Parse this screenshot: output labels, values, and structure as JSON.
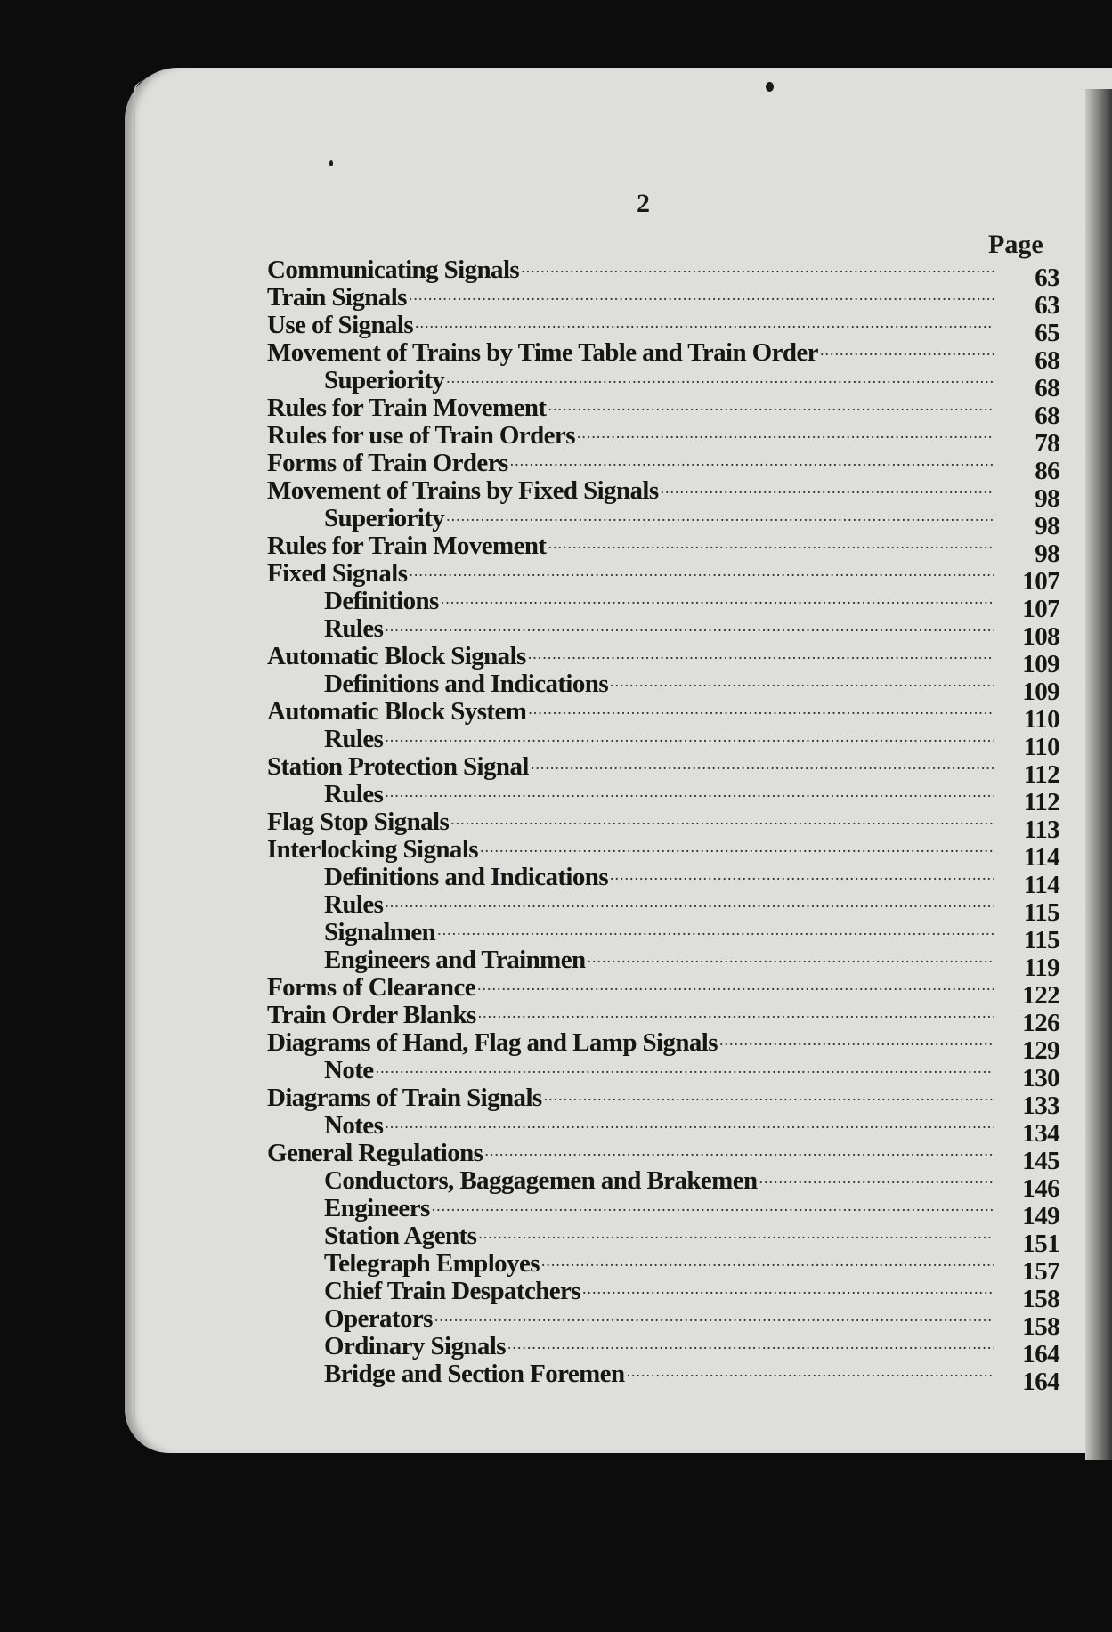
{
  "page_number": "2",
  "page_column_header": "Page",
  "entries": [
    {
      "label": "Communicating Signals",
      "page": "63",
      "indent": false
    },
    {
      "label": "Train Signals",
      "page": "63",
      "indent": false
    },
    {
      "label": "Use of Signals",
      "page": "65",
      "indent": false
    },
    {
      "label": "Movement of Trains by Time Table and Train Order",
      "page": "68",
      "indent": false
    },
    {
      "label": "Superiority",
      "page": "68",
      "indent": true
    },
    {
      "label": "Rules for Train Movement",
      "page": "68",
      "indent": false
    },
    {
      "label": "Rules for use of Train Orders",
      "page": "78",
      "indent": false
    },
    {
      "label": "Forms of Train Orders",
      "page": "86",
      "indent": false
    },
    {
      "label": "Movement of Trains by Fixed Signals",
      "page": "98",
      "indent": false
    },
    {
      "label": "Superiority",
      "page": "98",
      "indent": true
    },
    {
      "label": "Rules for Train Movement",
      "page": "98",
      "indent": false
    },
    {
      "label": "Fixed Signals",
      "page": "107",
      "indent": false
    },
    {
      "label": "Definitions",
      "page": "107",
      "indent": true
    },
    {
      "label": "Rules",
      "page": "108",
      "indent": true
    },
    {
      "label": "Automatic Block Signals",
      "page": "109",
      "indent": false
    },
    {
      "label": "Definitions and Indications",
      "page": "109",
      "indent": true
    },
    {
      "label": "Automatic Block System",
      "page": "110",
      "indent": false
    },
    {
      "label": "Rules",
      "page": "110",
      "indent": true
    },
    {
      "label": "Station Protection Signal",
      "page": "112",
      "indent": false
    },
    {
      "label": "Rules",
      "page": "112",
      "indent": true
    },
    {
      "label": "Flag Stop Signals",
      "page": "113",
      "indent": false
    },
    {
      "label": "Interlocking Signals",
      "page": "114",
      "indent": false
    },
    {
      "label": "Definitions and Indications",
      "page": "114",
      "indent": true
    },
    {
      "label": "Rules",
      "page": "115",
      "indent": true
    },
    {
      "label": "Signalmen",
      "page": "115",
      "indent": true
    },
    {
      "label": "Engineers and Trainmen",
      "page": "119",
      "indent": true
    },
    {
      "label": "Forms of Clearance",
      "page": "122",
      "indent": false
    },
    {
      "label": "Train Order Blanks",
      "page": "126",
      "indent": false
    },
    {
      "label": "Diagrams of Hand, Flag and Lamp Signals",
      "page": "129",
      "indent": false
    },
    {
      "label": "Note",
      "page": "130",
      "indent": true
    },
    {
      "label": "Diagrams of Train Signals",
      "page": "133",
      "indent": false
    },
    {
      "label": "Notes",
      "page": "134",
      "indent": true
    },
    {
      "label": "General Regulations",
      "page": "145",
      "indent": false
    },
    {
      "label": "Conductors, Baggagemen and Brakemen",
      "page": "146",
      "indent": true
    },
    {
      "label": "Engineers",
      "page": "149",
      "indent": true
    },
    {
      "label": "Station Agents",
      "page": "151",
      "indent": true
    },
    {
      "label": "Telegraph Employes",
      "page": "157",
      "indent": true
    },
    {
      "label": "Chief Train Despatchers",
      "page": "158",
      "indent": true
    },
    {
      "label": "Operators",
      "page": "158",
      "indent": true
    },
    {
      "label": "Ordinary Signals",
      "page": "164",
      "indent": true
    },
    {
      "label": "Bridge and Section Foremen",
      "page": "164",
      "indent": true
    }
  ]
}
